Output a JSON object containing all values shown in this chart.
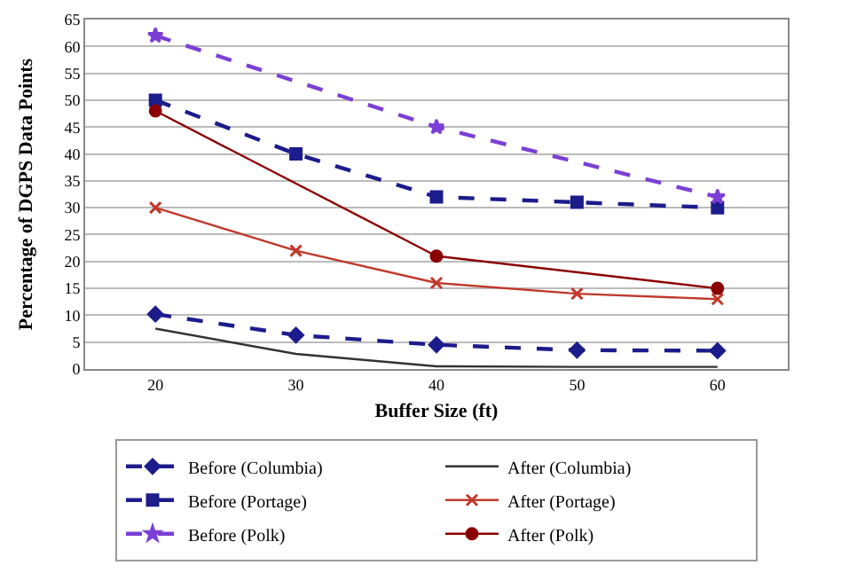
{
  "chart_data": {
    "type": "line",
    "xlabel": "Buffer Size (ft)",
    "ylabel": "Percentage of DGPS Data Points",
    "categories": [
      "20",
      "30",
      "40",
      "50",
      "60"
    ],
    "series": [
      {
        "name": "Before (Columbia)",
        "color": "#1c1c8c",
        "marker": "diamond",
        "line_style": "dashed",
        "values": [
          10.2,
          6.3,
          4.5,
          3.5,
          3.4
        ]
      },
      {
        "name": "After (Columbia)",
        "color": "#333333",
        "marker": "none",
        "line_style": "solid",
        "values": [
          7.5,
          2.8,
          0.5,
          0.4,
          0.4
        ]
      },
      {
        "name": "Before (Portage)",
        "color": "#1c1c8c",
        "marker": "square",
        "line_style": "dashed",
        "values": [
          50,
          40,
          32,
          31,
          30
        ]
      },
      {
        "name": "After (Portage)",
        "color": "#c0392b",
        "marker": "cross",
        "line_style": "solid",
        "values": [
          30,
          22,
          16,
          14,
          13
        ]
      },
      {
        "name": "Before (Polk)",
        "color": "#7b3fd6",
        "marker": "star",
        "line_style": "dashed",
        "values": [
          62,
          null,
          45,
          null,
          32
        ]
      },
      {
        "name": "After (Polk)",
        "color": "#8b0000",
        "marker": "circle",
        "line_style": "solid",
        "values": [
          48,
          null,
          21,
          null,
          15
        ]
      }
    ],
    "ylim": [
      0,
      65
    ],
    "yticks": [
      0,
      5,
      10,
      15,
      20,
      25,
      30,
      35,
      40,
      45,
      50,
      55,
      60,
      65
    ],
    "grid": "y",
    "legend": "bottom"
  }
}
